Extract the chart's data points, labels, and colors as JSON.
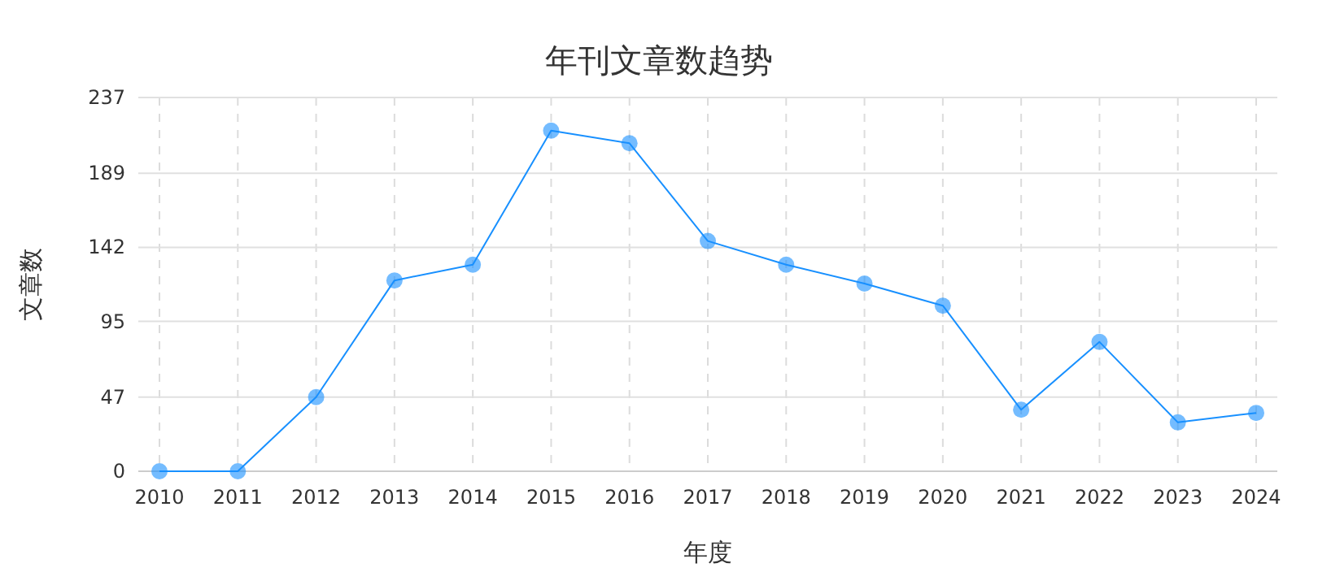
{
  "chart_data": {
    "type": "line",
    "title": "年刊文章数趋势",
    "xlabel": "年度",
    "ylabel": "文章数",
    "categories": [
      "2010",
      "2011",
      "2012",
      "2013",
      "2014",
      "2015",
      "2016",
      "2017",
      "2018",
      "2019",
      "2020",
      "2021",
      "2022",
      "2023",
      "2024"
    ],
    "series": [
      {
        "color": "#1890ff",
        "values": [
          0,
          0,
          47,
          121,
          131,
          216,
          208,
          146,
          131,
          119,
          105,
          39,
          82,
          31,
          37
        ]
      }
    ],
    "ylim": [
      0,
      237
    ],
    "yticks": [
      0,
      47,
      95,
      142,
      189,
      237
    ],
    "grid": true,
    "marker": "circle",
    "line_style": "solid"
  }
}
